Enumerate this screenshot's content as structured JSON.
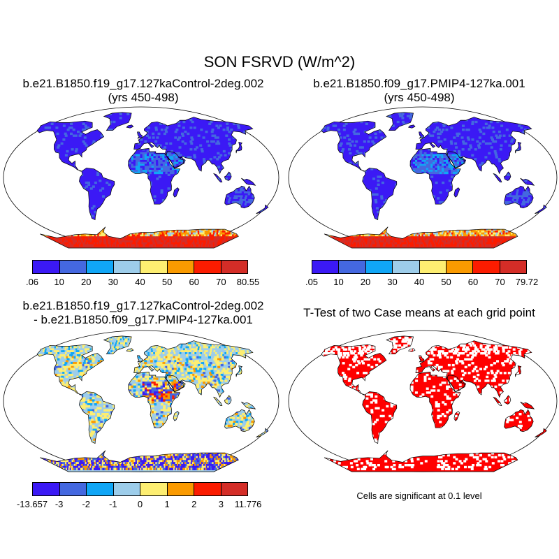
{
  "figure": {
    "title": "SON FSRVD (W/m^2)",
    "significance_note": "Cells are significant at 0.1 level"
  },
  "panels": [
    {
      "id": "control",
      "title_line1": "b.e21.B1850.f19_g17.127kaControl-2deg.002",
      "title_line2": "(yrs 450-498)",
      "colorbar_labels": [
        ".06",
        "10",
        "20",
        "30",
        "40",
        "50",
        "60",
        "70",
        "80.55"
      ],
      "colorbar_colors": [
        "#3b19f5",
        "#4468e0",
        "#10a6f6",
        "#9dcdea",
        "#fdee71",
        "#fa9a00",
        "#fb1c00",
        "#d42d27"
      ]
    },
    {
      "id": "pmip4",
      "title_line1": "b.e21.B1850.f09_g17.PMIP4-127ka.001",
      "title_line2": "(yrs 450-498)",
      "colorbar_labels": [
        ".05",
        "10",
        "20",
        "30",
        "40",
        "50",
        "60",
        "70",
        "79.72"
      ],
      "colorbar_colors": [
        "#3b19f5",
        "#4468e0",
        "#10a6f6",
        "#9dcdea",
        "#fdee71",
        "#fa9a00",
        "#fb1c00",
        "#d42d27"
      ]
    },
    {
      "id": "difference",
      "title_line1": "b.e21.B1850.f19_g17.127kaControl-2deg.002",
      "title_line2": "- b.e21.B1850.f09_g17.PMIP4-127ka.001",
      "colorbar_labels": [
        "-13.657",
        "-3",
        "-2",
        "-1",
        "0",
        "1",
        "2",
        "3",
        "11.776"
      ],
      "colorbar_colors": [
        "#3b19f5",
        "#4468e0",
        "#10a6f6",
        "#9dcdea",
        "#fdee71",
        "#fa9a00",
        "#fb1c00",
        "#d42d27"
      ]
    },
    {
      "id": "ttest",
      "title_line1": "T-Test of two Case means at each grid point",
      "significant_color": "#ff0000"
    }
  ]
}
